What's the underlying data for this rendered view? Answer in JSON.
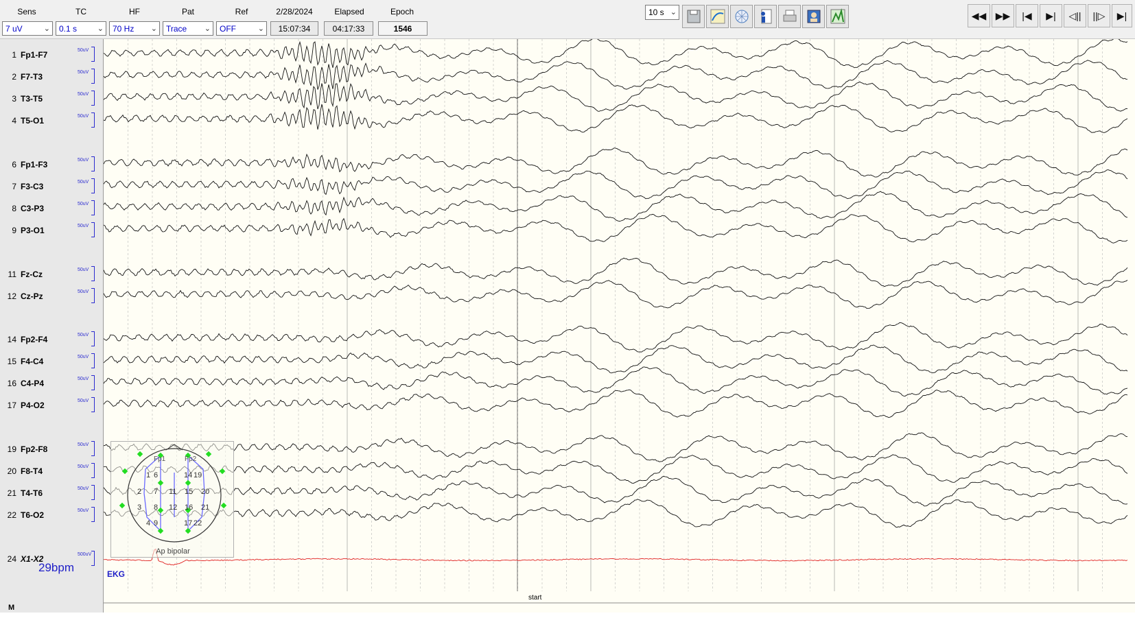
{
  "toolbar": {
    "headers": [
      "Sens",
      "TC",
      "HF",
      "Pat",
      "Ref",
      "2/28/2024",
      "Elapsed",
      "Epoch"
    ],
    "sens": "7 uV",
    "tc": "0.1 s",
    "hf": "70 Hz",
    "pat": "Trace",
    "ref": "OFF",
    "clock": "15:07:34",
    "elapsed": "04:17:33",
    "epoch": "1546",
    "page_length": "10 s",
    "tool_icons": [
      "save-icon",
      "trend-icon",
      "electrode-map-icon",
      "patient-info-icon",
      "print-icon",
      "video-icon",
      "spectral-icon"
    ],
    "nav_icons": [
      "rewind-icon",
      "fast-forward-icon",
      "first-epoch-icon",
      "last-epoch-icon",
      "step-back-icon",
      "step-forward-icon",
      "marker-jump-icon"
    ],
    "nav_glyphs": [
      "◀◀",
      "▶▶",
      "|◀",
      "▶|",
      "◁||",
      "||▷",
      "▶|"
    ]
  },
  "channels": [
    {
      "num": "1",
      "name": "Fp1-F7",
      "sens": "50uV"
    },
    {
      "num": "2",
      "name": "F7-T3",
      "sens": "50uV"
    },
    {
      "num": "3",
      "name": "T3-T5",
      "sens": "50uV"
    },
    {
      "num": "4",
      "name": "T5-O1",
      "sens": "50uV"
    },
    {
      "num": "6",
      "name": "Fp1-F3",
      "sens": "50uV"
    },
    {
      "num": "7",
      "name": "F3-C3",
      "sens": "50uV"
    },
    {
      "num": "8",
      "name": "C3-P3",
      "sens": "50uV"
    },
    {
      "num": "9",
      "name": "P3-O1",
      "sens": "50uV"
    },
    {
      "num": "11",
      "name": "Fz-Cz",
      "sens": "50uV"
    },
    {
      "num": "12",
      "name": "Cz-Pz",
      "sens": "50uV"
    },
    {
      "num": "14",
      "name": "Fp2-F4",
      "sens": "50uV"
    },
    {
      "num": "15",
      "name": "F4-C4",
      "sens": "50uV"
    },
    {
      "num": "16",
      "name": "C4-P4",
      "sens": "50uV"
    },
    {
      "num": "17",
      "name": "P4-O2",
      "sens": "50uV"
    },
    {
      "num": "19",
      "name": "Fp2-F8",
      "sens": "50uV"
    },
    {
      "num": "20",
      "name": "F8-T4",
      "sens": "50uV"
    },
    {
      "num": "21",
      "name": "T4-T6",
      "sens": "50uV"
    },
    {
      "num": "22",
      "name": "T6-O2",
      "sens": "50uV"
    },
    {
      "num": "24",
      "name": "X1-X2",
      "sens": "500uV"
    }
  ],
  "heart_rate": "29bpm",
  "marker_row_label": "M",
  "ekg_label": "EKG",
  "event_marker": "start",
  "montage": {
    "caption": "Ap bipolar",
    "electrodes": [
      "Fp1",
      "Fp2"
    ],
    "numbers": [
      "1",
      "6",
      "14",
      "19",
      "2",
      "7",
      "11",
      "15",
      "20",
      "3",
      "8",
      "12",
      "16",
      "21",
      "4",
      "9",
      "17",
      "22"
    ]
  },
  "colors": {
    "trace": "#111111",
    "ekg": "#e02020",
    "label_blue": "#2020c8",
    "background": "#fffef5",
    "grid": "#b8b8b8"
  }
}
